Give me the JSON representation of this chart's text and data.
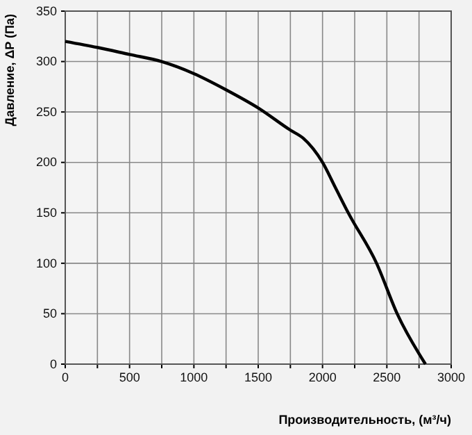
{
  "chart_data": {
    "type": "line",
    "xlabel": "Производительность, (м³/ч)",
    "ylabel": "Давление, ΔP (Па)",
    "x": [
      0,
      250,
      500,
      750,
      1000,
      1250,
      1500,
      1750,
      1850,
      2000,
      2100,
      2200,
      2420,
      2580,
      2800
    ],
    "series": [
      {
        "color": "#000000",
        "values": [
          320,
          314,
          307,
          300,
          288,
          272,
          254,
          232,
          224,
          200,
          175,
          150,
          100,
          50,
          0
        ]
      }
    ],
    "xlim": [
      0,
      3000
    ],
    "ylim": [
      0,
      350
    ],
    "xticks": [
      0,
      {
        "value": 250,
        "label": null
      },
      500,
      {
        "value": 750,
        "label": null
      },
      1000,
      {
        "value": 1250,
        "label": null
      },
      1500,
      {
        "value": 1750,
        "label": null
      },
      2000,
      {
        "value": 2250,
        "label": null
      },
      2500,
      {
        "value": 2750,
        "label": null
      },
      3000
    ],
    "yticks": [
      0,
      50,
      100,
      150,
      200,
      250,
      300,
      350
    ],
    "grid": true,
    "marker": "none",
    "line_style": "solid"
  }
}
